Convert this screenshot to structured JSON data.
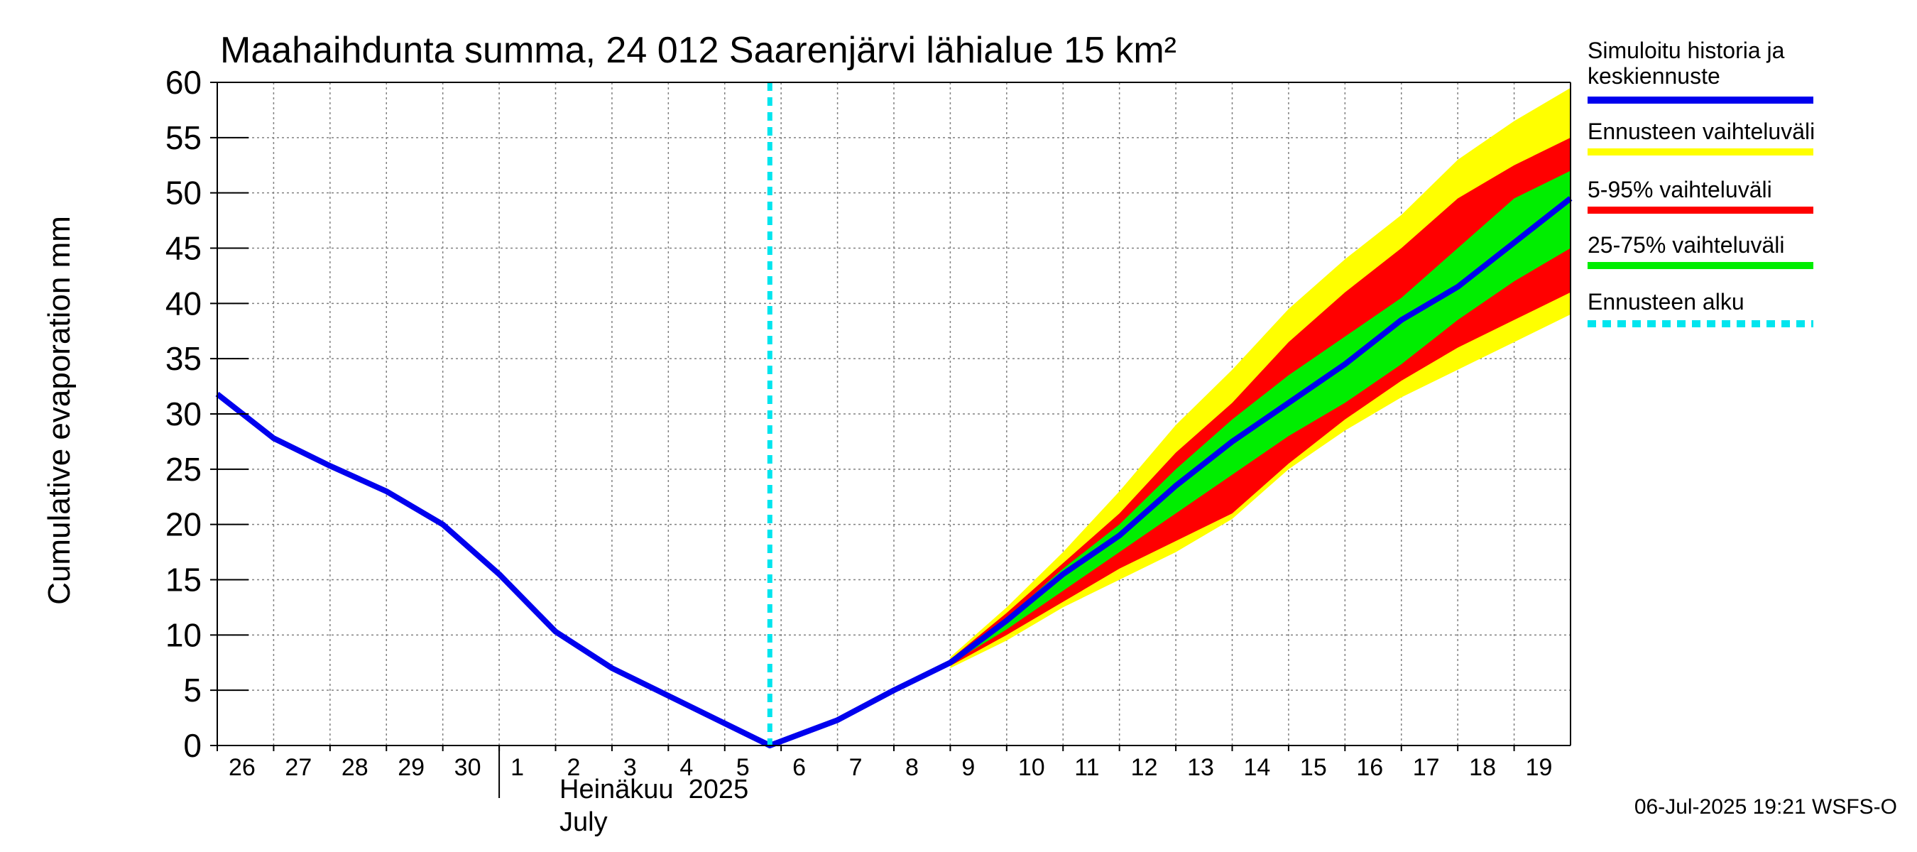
{
  "chart_data": {
    "type": "area",
    "title": "Maahaihdunta summa, 24 012 Saarenjärvi lähialue 15 km²",
    "ylabel": "Cumulative evaporation   mm",
    "ylim": [
      0,
      60
    ],
    "yticks": [
      0,
      5,
      10,
      15,
      20,
      25,
      30,
      35,
      40,
      45,
      50,
      55,
      60
    ],
    "xlim": [
      -10,
      14
    ],
    "x_tick_labels": [
      "26",
      "27",
      "28",
      "29",
      "30",
      "1",
      "2",
      "3",
      "4",
      "5",
      "6",
      "7",
      "8",
      "9",
      "10",
      "11",
      "12",
      "13",
      "14",
      "15",
      "16",
      "17",
      "18",
      "19"
    ],
    "x_tick_values": [
      -10,
      -9,
      -8,
      -7,
      -6,
      -5,
      -4,
      -3,
      -2,
      -1,
      0,
      1,
      2,
      3,
      4,
      5,
      6,
      7,
      8,
      9,
      10,
      11,
      12,
      13
    ],
    "month_labels": [
      "Heinäkuu  2025",
      "July"
    ],
    "forecast_start": -0.2,
    "grid": true,
    "series": [
      {
        "name": "Simuloitu historia ja keskiennuste",
        "color": "#0000ee",
        "x": [
          -10,
          -9,
          -8,
          -7,
          -6,
          -5,
          -4,
          -3,
          -2,
          -1,
          -0.2,
          1,
          2,
          3,
          4,
          5,
          6,
          7,
          8,
          9,
          10,
          11,
          12,
          13,
          14
        ],
        "values": [
          31.8,
          27.8,
          25.3,
          23.0,
          20.0,
          15.5,
          10.3,
          7.0,
          4.5,
          2.0,
          0.0,
          2.3,
          5.0,
          7.5,
          11.3,
          15.5,
          19.0,
          23.5,
          27.5,
          31.0,
          34.5,
          38.5,
          41.5,
          45.5,
          49.5
        ]
      }
    ],
    "bands": [
      {
        "name": "Ennusteen vaihteluväli",
        "color": "#ffff00",
        "x": [
          3,
          4,
          5,
          6,
          7,
          8,
          9,
          10,
          11,
          12,
          13,
          14
        ],
        "upper": [
          8.0,
          12.5,
          17.5,
          23.0,
          29.0,
          34.0,
          39.5,
          44.0,
          48.0,
          53.0,
          56.5,
          59.5
        ],
        "lower": [
          7.0,
          9.5,
          12.5,
          15.0,
          17.5,
          20.5,
          25.0,
          28.5,
          31.5,
          34.0,
          36.5,
          39.0
        ]
      },
      {
        "name": "5-95% vaihteluväli",
        "color": "#ff0000",
        "x": [
          3,
          4,
          5,
          6,
          7,
          8,
          9,
          10,
          11,
          12,
          13,
          14
        ],
        "upper": [
          7.8,
          12.0,
          16.5,
          21.0,
          26.5,
          31.0,
          36.5,
          41.0,
          45.0,
          49.5,
          52.5,
          55.0
        ],
        "lower": [
          7.2,
          10.0,
          13.0,
          16.0,
          18.5,
          21.0,
          25.5,
          29.5,
          33.0,
          36.0,
          38.5,
          41.0
        ]
      },
      {
        "name": "25-75% vaihteluväli",
        "color": "#00ee00",
        "x": [
          3,
          4,
          5,
          6,
          7,
          8,
          9,
          10,
          11,
          12,
          13,
          14
        ],
        "upper": [
          7.6,
          11.5,
          16.0,
          20.0,
          25.0,
          29.5,
          33.5,
          37.0,
          40.5,
          45.0,
          49.5,
          52.0
        ],
        "lower": [
          7.4,
          10.5,
          14.0,
          17.5,
          21.0,
          24.5,
          28.0,
          31.0,
          34.5,
          38.5,
          42.0,
          45.0
        ]
      }
    ],
    "legend": [
      {
        "label": "Simuloitu historia ja keskiennuste",
        "lines": [
          "Simuloitu historia ja",
          "keskiennuste"
        ],
        "color": "#0000ee",
        "style": "solid"
      },
      {
        "label": "Ennusteen vaihteluväli",
        "lines": [
          "Ennusteen vaihteluväli"
        ],
        "color": "#ffff00",
        "style": "solid"
      },
      {
        "label": "5-95% vaihteluväli",
        "lines": [
          "5-95% vaihteluväli"
        ],
        "color": "#ff0000",
        "style": "solid"
      },
      {
        "label": "25-75% vaihteluväli",
        "lines": [
          "25-75% vaihteluväli"
        ],
        "color": "#00ee00",
        "style": "solid"
      },
      {
        "label": "Ennusteen alku",
        "lines": [
          "Ennusteen alku"
        ],
        "color": "#00e5ee",
        "style": "dashed"
      }
    ],
    "legend_position": "right",
    "forecast_line_color": "#00e5ee",
    "footer": "06-Jul-2025 19:21 WSFS-O"
  }
}
